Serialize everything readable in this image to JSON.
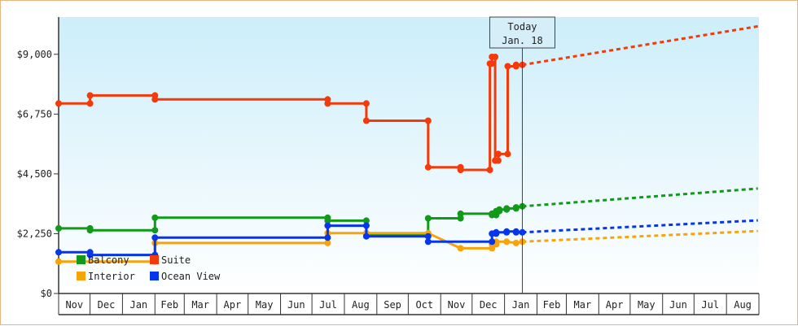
{
  "chart_data": {
    "type": "line",
    "style": "step",
    "x_unit": "month",
    "x_start": "2016-11",
    "x_end": "2018-08",
    "x_tick_labels": [
      "Nov",
      "Dec",
      "Jan",
      "Feb",
      "Mar",
      "Apr",
      "May",
      "Jun",
      "Jul",
      "Aug",
      "Sep",
      "Oct",
      "Nov",
      "Dec",
      "Jan",
      "Feb",
      "Mar",
      "Apr",
      "May",
      "Jun",
      "Jul",
      "Aug"
    ],
    "y_tick_labels": [
      "$0",
      "$2,250",
      "$4,500",
      "$6,750",
      "$9,000"
    ],
    "y_tick_values": [
      0,
      2250,
      4500,
      6750,
      9000
    ],
    "ylim": [
      0,
      10400
    ],
    "title": "",
    "xlabel": "",
    "ylabel": "",
    "background": "gradient light-blue to white",
    "today": {
      "label_line1": "Today",
      "label_line2": "Jan. 18",
      "date": "2018-01-18"
    },
    "legend": {
      "placement": "lower-left",
      "entries": [
        "Balcony",
        "Suite",
        "Interior",
        "Ocean View"
      ]
    },
    "series": [
      {
        "name": "Balcony",
        "color": "#11991a",
        "points": [
          [
            "2016-11-01",
            2450
          ],
          [
            "2016-12-01",
            2450
          ],
          [
            "2016-12-01",
            2380
          ],
          [
            "2017-02-01",
            2380
          ],
          [
            "2017-02-01",
            2850
          ],
          [
            "2017-07-16",
            2850
          ],
          [
            "2017-07-16",
            2740
          ],
          [
            "2017-08-22",
            2740
          ],
          [
            "2017-08-22",
            2200
          ],
          [
            "2017-10-20",
            2200
          ],
          [
            "2017-10-20",
            2830
          ],
          [
            "2017-11-20",
            2830
          ],
          [
            "2017-11-20",
            3000
          ],
          [
            "2017-12-20",
            3000
          ],
          [
            "2017-12-20",
            2950
          ],
          [
            "2017-12-24",
            2950
          ],
          [
            "2017-12-24",
            3100
          ],
          [
            "2017-12-27",
            3100
          ],
          [
            "2017-12-27",
            3160
          ],
          [
            "2018-01-03",
            3160
          ],
          [
            "2018-01-03",
            3200
          ],
          [
            "2018-01-12",
            3200
          ],
          [
            "2018-01-12",
            3240
          ],
          [
            "2018-01-18",
            3280
          ]
        ],
        "projection": [
          [
            "2018-01-18",
            3280
          ],
          [
            "2018-08-31",
            3950
          ]
        ]
      },
      {
        "name": "Suite",
        "color": "#f23a0b",
        "points": [
          [
            "2016-11-01",
            7150
          ],
          [
            "2016-12-01",
            7150
          ],
          [
            "2016-12-01",
            7450
          ],
          [
            "2017-02-01",
            7450
          ],
          [
            "2017-02-01",
            7300
          ],
          [
            "2017-07-16",
            7300
          ],
          [
            "2017-07-16",
            7150
          ],
          [
            "2017-08-22",
            7150
          ],
          [
            "2017-08-22",
            6500
          ],
          [
            "2017-10-20",
            6500
          ],
          [
            "2017-10-20",
            4750
          ],
          [
            "2017-11-20",
            4750
          ],
          [
            "2017-11-20",
            4650
          ],
          [
            "2017-12-18",
            4650
          ],
          [
            "2017-12-18",
            8650
          ],
          [
            "2017-12-20",
            8650
          ],
          [
            "2017-12-20",
            8900
          ],
          [
            "2017-12-23",
            8900
          ],
          [
            "2017-12-23",
            5000
          ],
          [
            "2017-12-26",
            5000
          ],
          [
            "2017-12-26",
            5250
          ],
          [
            "2018-01-04",
            5250
          ],
          [
            "2018-01-04",
            8550
          ],
          [
            "2018-01-12",
            8550
          ],
          [
            "2018-01-12",
            8600
          ],
          [
            "2018-01-18",
            8600
          ]
        ],
        "projection": [
          [
            "2018-01-18",
            8600
          ],
          [
            "2018-08-31",
            10050
          ]
        ]
      },
      {
        "name": "Interior",
        "color": "#f9a30a",
        "points": [
          [
            "2016-11-01",
            1200
          ],
          [
            "2017-02-01",
            1200
          ],
          [
            "2017-02-01",
            1900
          ],
          [
            "2017-07-16",
            1900
          ],
          [
            "2017-07-16",
            2270
          ],
          [
            "2017-08-22",
            2270
          ],
          [
            "2017-08-22",
            2270
          ],
          [
            "2017-10-20",
            2270
          ],
          [
            "2017-11-20",
            1700
          ],
          [
            "2017-12-20",
            1700
          ],
          [
            "2017-12-20",
            1850
          ],
          [
            "2017-12-24",
            1850
          ],
          [
            "2017-12-24",
            1950
          ],
          [
            "2018-01-03",
            1950
          ],
          [
            "2018-01-12",
            1900
          ],
          [
            "2018-01-18",
            1950
          ]
        ],
        "projection": [
          [
            "2018-01-18",
            1950
          ],
          [
            "2018-08-31",
            2350
          ]
        ]
      },
      {
        "name": "Ocean View",
        "color": "#0535ec",
        "points": [
          [
            "2016-11-01",
            1550
          ],
          [
            "2016-12-01",
            1550
          ],
          [
            "2016-12-01",
            1450
          ],
          [
            "2017-02-01",
            1450
          ],
          [
            "2017-02-01",
            2100
          ],
          [
            "2017-07-16",
            2100
          ],
          [
            "2017-07-16",
            2550
          ],
          [
            "2017-08-22",
            2550
          ],
          [
            "2017-08-22",
            2150
          ],
          [
            "2017-10-20",
            2150
          ],
          [
            "2017-10-20",
            1950
          ],
          [
            "2017-12-20",
            1950
          ],
          [
            "2017-12-20",
            2250
          ],
          [
            "2017-12-24",
            2250
          ],
          [
            "2017-12-24",
            2300
          ],
          [
            "2018-01-03",
            2300
          ],
          [
            "2018-01-03",
            2330
          ],
          [
            "2018-01-12",
            2330
          ],
          [
            "2018-01-12",
            2300
          ],
          [
            "2018-01-18",
            2300
          ]
        ],
        "projection": [
          [
            "2018-01-18",
            2300
          ],
          [
            "2018-08-31",
            2750
          ]
        ]
      }
    ]
  }
}
